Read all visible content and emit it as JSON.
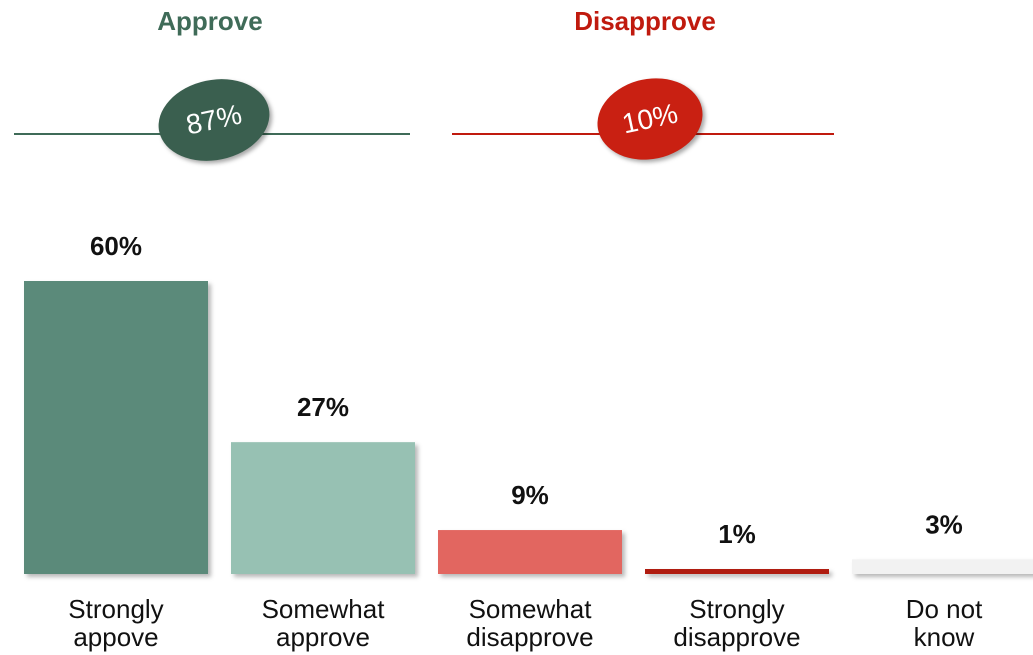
{
  "groups": {
    "approve": {
      "title": "Approve",
      "total": "87%",
      "color": "#3f6b58",
      "oval_color": "#3a5f4f"
    },
    "disapprove": {
      "title": "Disapprove",
      "total": "10%",
      "color": "#c01a0e",
      "oval_color": "#c92012"
    }
  },
  "chart_data": {
    "type": "bar",
    "categories": [
      [
        "Strongly",
        "appove"
      ],
      [
        "Somewhat",
        "approve"
      ],
      [
        "Somewhat",
        "disapprove"
      ],
      [
        "Strongly",
        "disapprove"
      ],
      [
        "Do not",
        "know"
      ]
    ],
    "values": [
      60,
      27,
      9,
      1,
      3
    ],
    "value_labels": [
      "60%",
      "27%",
      "9%",
      "1%",
      "3%"
    ],
    "colors": [
      "#5b8a7a",
      "#97c1b3",
      "#e26660",
      "#b01c10",
      "#f2f2f2"
    ],
    "ylim": [
      0,
      60
    ],
    "grid": false
  }
}
